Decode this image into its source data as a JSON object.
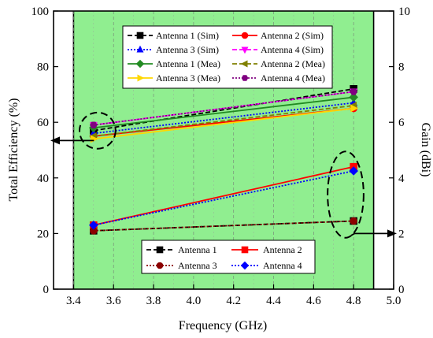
{
  "chart_data": {
    "type": "line",
    "xlabel": "Frequency (GHz)",
    "ylabel_left": "Total Efficiency (%)",
    "ylabel_right": "Gain (dBi)",
    "xlim": [
      3.3,
      5.0
    ],
    "ylim_left": [
      0,
      100
    ],
    "ylim_right": [
      0,
      10
    ],
    "x_ticks": [
      "3.4",
      "3.6",
      "3.8",
      "4.0",
      "4.2",
      "4.4",
      "4.6",
      "4.8",
      "5.0"
    ],
    "y_left_ticks": [
      "0",
      "20",
      "40",
      "60",
      "80",
      "100"
    ],
    "y_right_ticks": [
      "0",
      "2",
      "4",
      "6",
      "8",
      "10"
    ],
    "highlight_band": {
      "from": 3.4,
      "to": 4.9,
      "color": "#90ee90"
    },
    "grid": "vertical dashed",
    "efficiency_series": [
      {
        "name": "Antenna 1 (Sim)",
        "color": "#000000",
        "marker": "square",
        "dash": "dash",
        "x": [
          3.5,
          4.8
        ],
        "y": [
          57,
          72
        ]
      },
      {
        "name": "Antenna 2 (Sim)",
        "color": "#ff0000",
        "marker": "circle",
        "dash": "solid",
        "x": [
          3.5,
          4.8
        ],
        "y": [
          55,
          65
        ]
      },
      {
        "name": "Antenna 3 (Sim)",
        "color": "#0000ff",
        "marker": "triangle-up",
        "dash": "dot",
        "x": [
          3.5,
          4.8
        ],
        "y": [
          56,
          67
        ]
      },
      {
        "name": "Antenna 4 (Sim)",
        "color": "#ff00ff",
        "marker": "triangle-down",
        "dash": "dash",
        "x": [
          3.5,
          4.8
        ],
        "y": [
          59,
          71
        ]
      },
      {
        "name": "Antenna 1 (Mea)",
        "color": "#228b22",
        "marker": "diamond",
        "dash": "solid",
        "x": [
          3.5,
          4.8
        ],
        "y": [
          58,
          69
        ]
      },
      {
        "name": "Antenna 2 (Mea)",
        "color": "#808000",
        "marker": "triangle-left",
        "dash": "dash",
        "x": [
          3.5,
          4.8
        ],
        "y": [
          55,
          66
        ]
      },
      {
        "name": "Antenna 3 (Mea)",
        "color": "#ffd700",
        "marker": "triangle-right",
        "dash": "solid",
        "x": [
          3.5,
          4.8
        ],
        "y": [
          54,
          65
        ]
      },
      {
        "name": "Antenna 4 (Mea)",
        "color": "#800080",
        "marker": "hexagon",
        "dash": "dot",
        "x": [
          3.5,
          4.8
        ],
        "y": [
          59,
          71
        ]
      }
    ],
    "gain_series": [
      {
        "name": "Antenna 1",
        "color": "#000000",
        "marker": "square",
        "dash": "dash",
        "x": [
          3.5,
          4.8
        ],
        "y": [
          2.1,
          2.45
        ]
      },
      {
        "name": "Antenna 2",
        "color": "#ff0000",
        "marker": "square",
        "dash": "solid",
        "x": [
          3.5,
          4.8
        ],
        "y": [
          2.3,
          4.4
        ]
      },
      {
        "name": "Antenna 3",
        "color": "#8b0000",
        "marker": "circle",
        "dash": "dot",
        "x": [
          3.5,
          4.8
        ],
        "y": [
          2.1,
          2.45
        ]
      },
      {
        "name": "Antenna 4",
        "color": "#0000ff",
        "marker": "diamond",
        "dash": "dot",
        "x": [
          3.5,
          4.8
        ],
        "y": [
          2.3,
          4.25
        ]
      }
    ],
    "annotations": [
      {
        "kind": "ellipse",
        "cx": 3.52,
        "cy": 57,
        "rx": 0.09,
        "ry": 6.5,
        "arrow_to": "left-axis"
      },
      {
        "kind": "ellipse",
        "cx": 4.76,
        "cy": 34,
        "rx": 0.09,
        "ry": 15.5,
        "arrow_to": "right-axis"
      }
    ],
    "legend_top_placement": "top-center",
    "legend_bottom_placement": "bottom-center"
  }
}
